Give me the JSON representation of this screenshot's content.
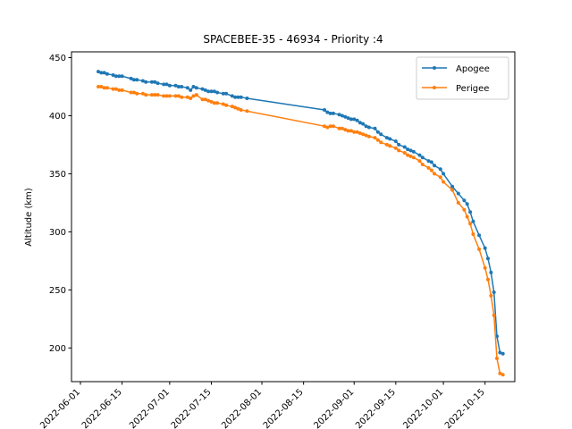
{
  "chart_data": {
    "type": "line",
    "title": "SPACEBEE-35 - 46934 - Priority :4",
    "xlabel": "",
    "ylabel": "Altitude (km)",
    "x_date_ticks": [
      "2022-06-01",
      "2022-06-15",
      "2022-07-01",
      "2022-07-15",
      "2022-08-01",
      "2022-08-15",
      "2022-09-01",
      "2022-09-15",
      "2022-10-01",
      "2022-10-15"
    ],
    "xlim": [
      "2022-05-29",
      "2022-10-25"
    ],
    "yticks": [
      200,
      250,
      300,
      350,
      400,
      450
    ],
    "ylim": [
      171,
      455
    ],
    "grid": false,
    "legend_position": "top-right",
    "series": [
      {
        "name": "Apogee",
        "color": "#1f77b4",
        "x": [
          "2022-06-07",
          "2022-06-08",
          "2022-06-09",
          "2022-06-10",
          "2022-06-12",
          "2022-06-13",
          "2022-06-14",
          "2022-06-15",
          "2022-06-18",
          "2022-06-19",
          "2022-06-20",
          "2022-06-22",
          "2022-06-23",
          "2022-06-25",
          "2022-06-26",
          "2022-06-27",
          "2022-06-29",
          "2022-06-30",
          "2022-07-01",
          "2022-07-03",
          "2022-07-04",
          "2022-07-05",
          "2022-07-07",
          "2022-07-08",
          "2022-07-09",
          "2022-07-10",
          "2022-07-12",
          "2022-07-13",
          "2022-07-14",
          "2022-07-15",
          "2022-07-16",
          "2022-07-17",
          "2022-07-19",
          "2022-07-20",
          "2022-07-22",
          "2022-07-23",
          "2022-07-24",
          "2022-07-25",
          "2022-07-27",
          "2022-08-22",
          "2022-08-23",
          "2022-08-24",
          "2022-08-25",
          "2022-08-27",
          "2022-08-28",
          "2022-08-29",
          "2022-08-30",
          "2022-08-31",
          "2022-09-01",
          "2022-09-02",
          "2022-09-03",
          "2022-09-04",
          "2022-09-05",
          "2022-09-06",
          "2022-09-08",
          "2022-09-09",
          "2022-09-10",
          "2022-09-12",
          "2022-09-13",
          "2022-09-15",
          "2022-09-16",
          "2022-09-18",
          "2022-09-19",
          "2022-09-20",
          "2022-09-21",
          "2022-09-23",
          "2022-09-24",
          "2022-09-26",
          "2022-09-27",
          "2022-09-28",
          "2022-09-30",
          "2022-10-01",
          "2022-10-04",
          "2022-10-06",
          "2022-10-08",
          "2022-10-09",
          "2022-10-10",
          "2022-10-11",
          "2022-10-13",
          "2022-10-15",
          "2022-10-16",
          "2022-10-17",
          "2022-10-18",
          "2022-10-19",
          "2022-10-20",
          "2022-10-21"
        ],
        "values": [
          438,
          437,
          437,
          436,
          435,
          434,
          434,
          434,
          432,
          431,
          431,
          430,
          429,
          429,
          429,
          428,
          427,
          427,
          426,
          426,
          425,
          425,
          424,
          422,
          425,
          424,
          423,
          422,
          421,
          421,
          421,
          420,
          419,
          419,
          417,
          416,
          416,
          416,
          415,
          405,
          403,
          402,
          402,
          401,
          400,
          399,
          398,
          397,
          397,
          396,
          394,
          393,
          391,
          390,
          389,
          386,
          384,
          381,
          380,
          378,
          375,
          373,
          371,
          370,
          369,
          366,
          364,
          361,
          360,
          357,
          354,
          350,
          339,
          333,
          327,
          324,
          317,
          309,
          297,
          286,
          277,
          265,
          248,
          210,
          196,
          195
        ]
      },
      {
        "name": "Perigee",
        "color": "#ff7f0e",
        "x": [
          "2022-06-07",
          "2022-06-08",
          "2022-06-09",
          "2022-06-10",
          "2022-06-12",
          "2022-06-13",
          "2022-06-14",
          "2022-06-15",
          "2022-06-18",
          "2022-06-19",
          "2022-06-20",
          "2022-06-22",
          "2022-06-23",
          "2022-06-25",
          "2022-06-26",
          "2022-06-27",
          "2022-06-29",
          "2022-06-30",
          "2022-07-01",
          "2022-07-03",
          "2022-07-04",
          "2022-07-05",
          "2022-07-07",
          "2022-07-08",
          "2022-07-09",
          "2022-07-10",
          "2022-07-12",
          "2022-07-13",
          "2022-07-14",
          "2022-07-15",
          "2022-07-16",
          "2022-07-17",
          "2022-07-19",
          "2022-07-20",
          "2022-07-22",
          "2022-07-23",
          "2022-07-24",
          "2022-07-25",
          "2022-07-27",
          "2022-08-22",
          "2022-08-23",
          "2022-08-24",
          "2022-08-25",
          "2022-08-27",
          "2022-08-28",
          "2022-08-29",
          "2022-08-30",
          "2022-08-31",
          "2022-09-01",
          "2022-09-02",
          "2022-09-03",
          "2022-09-04",
          "2022-09-05",
          "2022-09-06",
          "2022-09-08",
          "2022-09-09",
          "2022-09-10",
          "2022-09-12",
          "2022-09-13",
          "2022-09-15",
          "2022-09-16",
          "2022-09-18",
          "2022-09-19",
          "2022-09-20",
          "2022-09-21",
          "2022-09-23",
          "2022-09-24",
          "2022-09-26",
          "2022-09-27",
          "2022-09-28",
          "2022-09-30",
          "2022-10-01",
          "2022-10-04",
          "2022-10-06",
          "2022-10-08",
          "2022-10-09",
          "2022-10-10",
          "2022-10-11",
          "2022-10-13",
          "2022-10-15",
          "2022-10-16",
          "2022-10-17",
          "2022-10-18",
          "2022-10-19",
          "2022-10-20",
          "2022-10-21"
        ],
        "values": [
          425,
          425,
          424,
          424,
          423,
          423,
          422,
          422,
          420,
          420,
          419,
          419,
          418,
          418,
          418,
          418,
          417,
          417,
          417,
          417,
          417,
          416,
          416,
          415,
          417,
          418,
          414,
          414,
          413,
          412,
          411,
          411,
          410,
          409,
          408,
          407,
          406,
          405,
          404,
          391,
          390,
          391,
          391,
          389,
          389,
          388,
          387,
          387,
          386,
          386,
          385,
          384,
          383,
          382,
          381,
          379,
          377,
          375,
          374,
          372,
          370,
          368,
          366,
          365,
          364,
          361,
          358,
          355,
          353,
          350,
          347,
          343,
          336,
          325,
          319,
          313,
          307,
          298,
          285,
          269,
          259,
          245,
          228,
          191,
          178,
          177
        ]
      }
    ]
  }
}
